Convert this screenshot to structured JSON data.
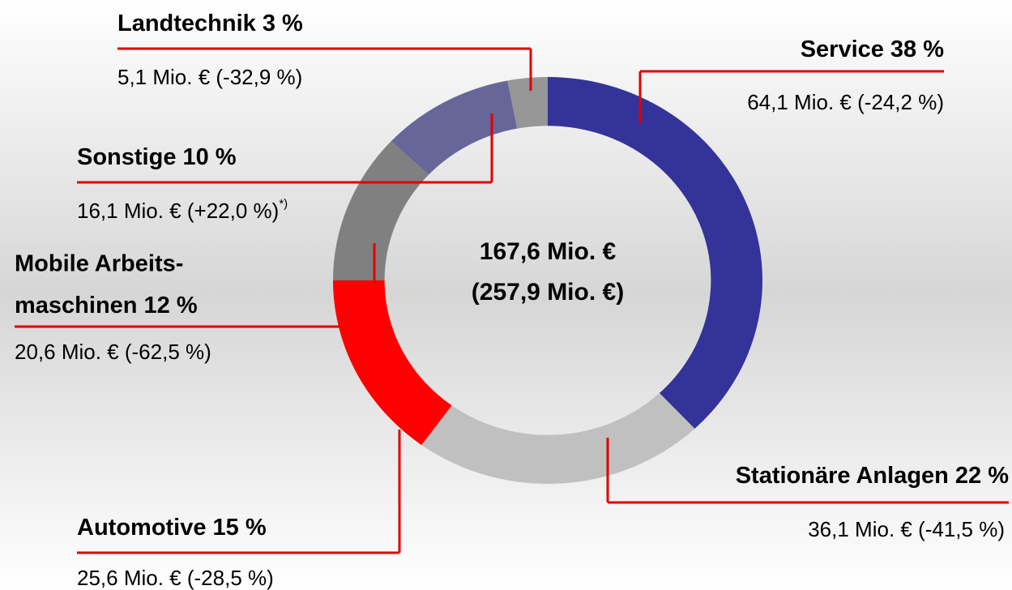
{
  "chart_data": {
    "type": "donut",
    "categories": [
      "Service",
      "Stationäre Anlagen",
      "Automotive",
      "Mobile Arbeits-\nmaschinen",
      "Sonstige",
      "Landtechnik"
    ],
    "values": [
      38,
      22,
      15,
      12,
      10,
      3
    ],
    "value_labels": [
      "38 %",
      "22 %",
      "15 %",
      "12 %",
      "10 %",
      "3 %"
    ],
    "details": [
      "64,1 Mio. € (-24,2 %)",
      "36,1 Mio. € (-41,5 %)",
      "25,6 Mio. € (-28,5 %)",
      "20,6 Mio. € (-62,5 %)",
      "16,1 Mio. € (+22,0 %)",
      "5,1 Mio. € (-32,9 %)"
    ],
    "footnote": {
      "index": 4,
      "mark": "*)"
    },
    "colors": [
      "#333399",
      "#c0c0c0",
      "#ff0000",
      "#808080",
      "#666699",
      "#969696"
    ],
    "center_text": [
      "167,6 Mio. €",
      "(257,9 Mio. €)"
    ]
  }
}
